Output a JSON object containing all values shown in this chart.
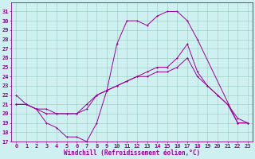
{
  "xlabel": "Windchill (Refroidissement éolien,°C)",
  "bg_color": "#cff0f0",
  "line_color": "#990099",
  "grid_color": "#99ccbb",
  "xlim": [
    -0.5,
    23.5
  ],
  "ylim": [
    17,
    32
  ],
  "yticks": [
    17,
    18,
    19,
    20,
    21,
    22,
    23,
    24,
    25,
    26,
    27,
    28,
    29,
    30,
    31
  ],
  "xticks": [
    0,
    1,
    2,
    3,
    4,
    5,
    6,
    7,
    8,
    9,
    10,
    11,
    12,
    13,
    14,
    15,
    16,
    17,
    18,
    19,
    20,
    21,
    22,
    23
  ],
  "curve1_x": [
    0,
    1,
    2,
    3,
    4,
    5,
    6,
    7,
    8,
    9,
    10,
    11,
    12,
    13,
    14,
    15,
    16,
    17,
    18,
    22,
    23
  ],
  "curve1_y": [
    22,
    21,
    20.5,
    19,
    18.5,
    17.5,
    17.5,
    17,
    19,
    22.5,
    27.5,
    30,
    30,
    29.5,
    30.5,
    31,
    31,
    30,
    28,
    19,
    19
  ],
  "curve2_x": [
    0,
    1,
    2,
    3,
    4,
    5,
    6,
    7,
    8,
    9,
    10,
    11,
    12,
    13,
    14,
    15,
    16,
    17,
    18,
    19,
    20,
    21,
    22,
    23
  ],
  "curve2_y": [
    21,
    21,
    20.5,
    20.5,
    20,
    20,
    20,
    21,
    22,
    22.5,
    23,
    23.5,
    24,
    24.5,
    25,
    25,
    26,
    27.5,
    24.5,
    23,
    22,
    21,
    19.5,
    19
  ],
  "curve3_x": [
    0,
    1,
    2,
    3,
    4,
    5,
    6,
    7,
    8,
    9,
    10,
    11,
    12,
    13,
    14,
    15,
    16,
    17,
    18,
    19,
    20,
    21,
    22,
    23
  ],
  "curve3_y": [
    21,
    21,
    20.5,
    20,
    20,
    20,
    20,
    20.5,
    22,
    22.5,
    23,
    23.5,
    24,
    24,
    24.5,
    24.5,
    25,
    26,
    24,
    23,
    22,
    21,
    19,
    19
  ],
  "lw": 0.7,
  "ms": 2.0,
  "label_fontsize": 5.5,
  "tick_fontsize": 5.0
}
